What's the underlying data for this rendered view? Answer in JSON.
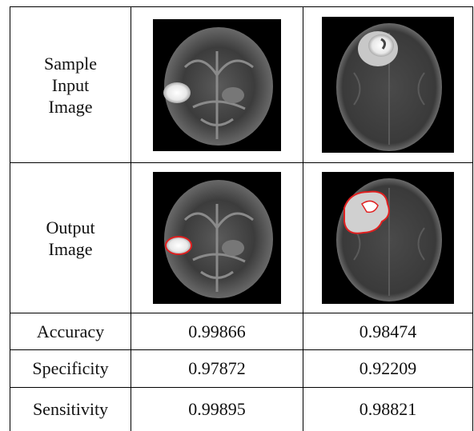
{
  "table": {
    "rows": [
      [
        "Sample Input Image"
      ],
      [
        "Output Image"
      ],
      [
        "Accuracy",
        0.99866,
        0.98474
      ],
      [
        "Specificity",
        0.97872,
        0.92209
      ],
      [
        "Sensitivity",
        0.99895,
        0.98821
      ]
    ]
  }
}
